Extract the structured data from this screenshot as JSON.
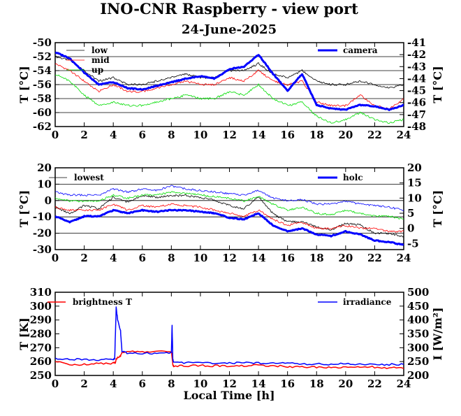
{
  "title": "INO-CNR Raspberry - view port",
  "subtitle": "24-June-2025",
  "xlabel": "Local Time [h]",
  "chart_data": [
    {
      "type": "line",
      "title": "",
      "xlabel": "",
      "ylabel": "T [°C]",
      "ylabel_right": "T [°C]",
      "xlim": [
        0,
        24
      ],
      "ylim": [
        -62,
        -50
      ],
      "ylim_right": [
        -48,
        -41
      ],
      "xticks": [
        "0",
        "2",
        "4",
        "6",
        "8",
        "10",
        "12",
        "14",
        "16",
        "18",
        "20",
        "22",
        "24"
      ],
      "yticks": [
        "-62",
        "-60",
        "-58",
        "-56",
        "-54",
        "-52",
        "-50"
      ],
      "yticks_right": [
        "-48",
        "-47",
        "-46",
        "-45",
        "-44",
        "-43",
        "-42",
        "-41"
      ],
      "grid": true,
      "legend_left": [
        "low",
        "mid",
        "up"
      ],
      "legend_right": [
        "camera"
      ],
      "x": [
        0,
        1,
        2,
        3,
        4,
        5,
        6,
        7,
        8,
        9,
        10,
        11,
        12,
        13,
        14,
        15,
        16,
        17,
        18,
        19,
        20,
        21,
        22,
        23,
        24
      ],
      "series": [
        {
          "name": "low",
          "axis": "left",
          "color": "#000000",
          "width": 0.8,
          "values": [
            -52,
            -52.5,
            -54,
            -55.5,
            -55,
            -56,
            -56,
            -55.5,
            -55,
            -54.5,
            -55,
            -55,
            -54,
            -54,
            -53,
            -54.5,
            -55,
            -54,
            -55.5,
            -56,
            -56,
            -55.5,
            -56,
            -56.5,
            -56
          ]
        },
        {
          "name": "mid",
          "axis": "left",
          "color": "#ff0000",
          "width": 0.8,
          "values": [
            -53,
            -54,
            -55.5,
            -57,
            -56,
            -57,
            -57,
            -56.5,
            -56,
            -55.5,
            -56,
            -56,
            -55,
            -55.5,
            -54,
            -55.5,
            -56,
            -55.5,
            -58.5,
            -59,
            -59,
            -57.5,
            -59,
            -59.5,
            -58
          ]
        },
        {
          "name": "up",
          "axis": "left",
          "color": "#00dd00",
          "width": 0.8,
          "values": [
            -54.5,
            -55.5,
            -57.5,
            -59,
            -58.5,
            -59,
            -59,
            -58.5,
            -58,
            -57.5,
            -58,
            -58,
            -57,
            -57.5,
            -56,
            -58,
            -59,
            -58.5,
            -60.5,
            -61.5,
            -61,
            -60,
            -61,
            -61.5,
            -61
          ]
        },
        {
          "name": "camera",
          "axis": "right",
          "color": "#0000ff",
          "width": 3,
          "values": [
            -41.8,
            -42.3,
            -43.5,
            -44.5,
            -44.3,
            -44.8,
            -44.9,
            -44.6,
            -44.3,
            -44,
            -43.8,
            -44,
            -43.2,
            -43,
            -42,
            -43.6,
            -45,
            -43.6,
            -46.2,
            -46.5,
            -46.6,
            -46.2,
            -46.3,
            -46.6,
            -46.2
          ]
        }
      ]
    },
    {
      "type": "line",
      "title": "",
      "xlabel": "",
      "ylabel": "T [°C]",
      "ylabel_right": "T [°C]",
      "xlim": [
        0,
        24
      ],
      "ylim": [
        -30,
        20
      ],
      "ylim_right": [
        -7,
        20
      ],
      "xticks": [
        "0",
        "2",
        "4",
        "6",
        "8",
        "10",
        "12",
        "14",
        "16",
        "18",
        "20",
        "22",
        "24"
      ],
      "yticks": [
        "-30",
        "-20",
        "-10",
        "0",
        "10",
        "20"
      ],
      "yticks_right": [
        "-5",
        "0",
        "5",
        "10",
        "15",
        "20"
      ],
      "grid": true,
      "legend_left": [
        "lowest"
      ],
      "legend_right": [
        "holc"
      ],
      "x": [
        0,
        1,
        2,
        3,
        4,
        5,
        6,
        7,
        8,
        9,
        10,
        11,
        12,
        13,
        14,
        15,
        16,
        17,
        18,
        19,
        20,
        21,
        22,
        23,
        24
      ],
      "series": [
        {
          "name": "lowest",
          "axis": "left",
          "color": "#000000",
          "width": 0.8,
          "values": [
            -4,
            -8,
            -3,
            -5,
            2,
            -1,
            3,
            2,
            3,
            3,
            2,
            0,
            -3,
            -5,
            2,
            -8,
            -13,
            -13,
            -16,
            -18,
            -14,
            -15,
            -20,
            -20,
            -22
          ]
        },
        {
          "name": "",
          "axis": "right",
          "color": "#ff0000",
          "width": 0.8,
          "values": [
            7,
            6,
            6,
            6,
            8,
            6,
            7.5,
            7,
            8,
            7.5,
            7,
            6,
            5,
            4,
            6,
            3,
            1,
            2,
            0,
            0,
            1,
            0,
            0,
            -1,
            -1
          ]
        },
        {
          "name": "",
          "axis": "right",
          "color": "#00dd00",
          "width": 0.8,
          "values": [
            10,
            9,
            9,
            9,
            11,
            10,
            11,
            11,
            12,
            11.5,
            11,
            10.5,
            10,
            9,
            10.5,
            8,
            6,
            7,
            5,
            4.5,
            6,
            5,
            4,
            4,
            3
          ]
        },
        {
          "name": "",
          "axis": "right",
          "color": "#0000ff",
          "width": 0.8,
          "values": [
            12,
            11,
            11,
            11,
            13,
            12,
            13,
            12.5,
            14,
            13,
            12.5,
            12,
            11.5,
            11,
            12.5,
            10,
            9,
            9.5,
            8,
            8,
            9,
            8,
            7.5,
            7,
            6
          ]
        },
        {
          "name": "holc",
          "axis": "right",
          "color": "#0000ff",
          "width": 3,
          "values": [
            4,
            2,
            4,
            4,
            6,
            5,
            6,
            5.5,
            6,
            6,
            5.5,
            5,
            3.5,
            3,
            5,
            1,
            -1,
            0,
            -2,
            -2.5,
            -1,
            -2,
            -4,
            -4.5,
            -5.5
          ]
        }
      ]
    },
    {
      "type": "line",
      "title": "",
      "xlabel": "Local Time [h]",
      "ylabel": "T [K]",
      "ylabel_right": "I [W/m²]",
      "xlim": [
        0,
        24
      ],
      "ylim": [
        250,
        310
      ],
      "ylim_right": [
        200,
        500
      ],
      "xticks": [
        "0",
        "2",
        "4",
        "6",
        "8",
        "10",
        "12",
        "14",
        "16",
        "18",
        "20",
        "22",
        "24"
      ],
      "yticks": [
        "250",
        "260",
        "270",
        "280",
        "290",
        "300",
        "310"
      ],
      "yticks_right": [
        "200",
        "250",
        "300",
        "350",
        "400",
        "450",
        "500"
      ],
      "grid": false,
      "legend_left": [
        "brightness T"
      ],
      "legend_right": [
        "irradiance"
      ],
      "series": [
        {
          "name": "brightness T",
          "axis": "left",
          "color": "#ff0000",
          "width": 1.5,
          "x": [
            0,
            1,
            2,
            3,
            4,
            4.15,
            4.2,
            4.5,
            4.6,
            5,
            6,
            7,
            8,
            8.1,
            8.15,
            9,
            10,
            11,
            12,
            13,
            14,
            15,
            16,
            17,
            18,
            19,
            20,
            21,
            22,
            23,
            24
          ],
          "values": [
            260,
            258,
            258,
            258.5,
            259,
            259,
            262,
            264,
            267,
            267,
            267,
            267,
            267.5,
            258,
            256.5,
            257,
            257,
            257,
            257,
            257,
            257.5,
            257,
            256.5,
            256,
            256,
            256,
            256,
            256,
            256,
            255.5,
            255
          ]
        },
        {
          "name": "irradiance",
          "axis": "right",
          "color": "#0000ff",
          "width": 1.5,
          "x": [
            0,
            1,
            2,
            3,
            4,
            4.1,
            4.2,
            4.3,
            4.5,
            4.6,
            5,
            6,
            7,
            8,
            8.05,
            8.1,
            8.15,
            9,
            10,
            11,
            12,
            13,
            14,
            15,
            16,
            17,
            18,
            19,
            20,
            21,
            22,
            23,
            24
          ],
          "values": [
            262,
            258,
            257,
            257,
            257,
            260,
            445,
            400,
            360,
            285,
            280,
            280,
            280,
            283,
            380,
            260,
            245,
            246,
            245,
            245,
            245,
            245,
            245,
            243,
            243,
            242,
            241,
            241,
            241,
            241,
            240,
            240,
            240
          ]
        }
      ]
    }
  ]
}
